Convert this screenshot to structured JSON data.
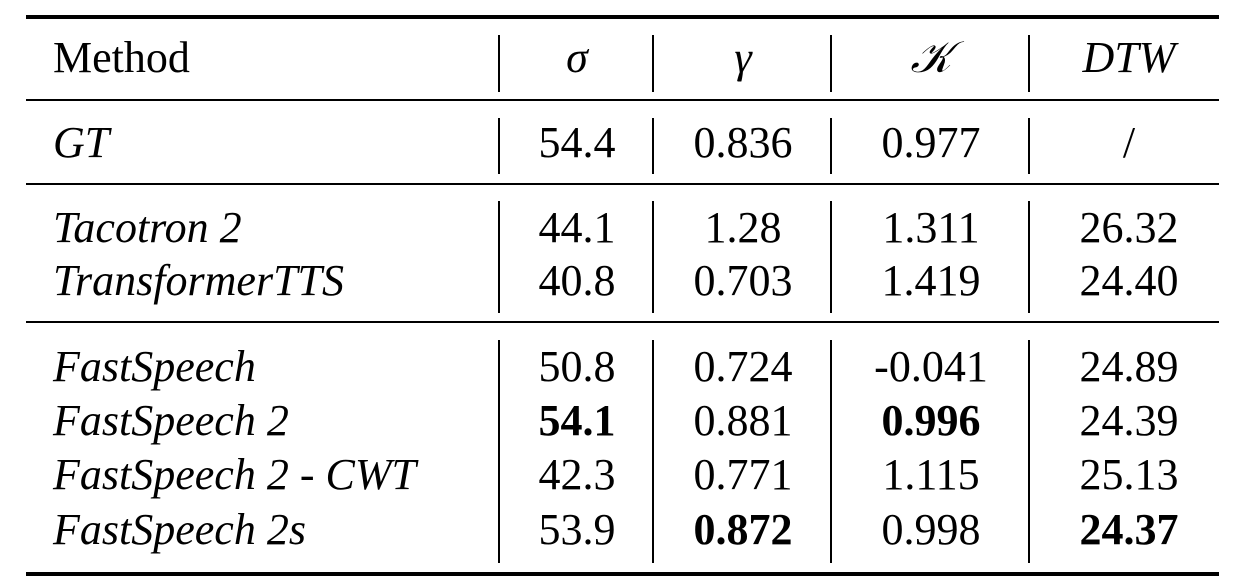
{
  "chart_data": {
    "type": "table",
    "columns": [
      "Method",
      "σ",
      "γ",
      "𝒦",
      "DTW"
    ],
    "groups": [
      {
        "rows": [
          {
            "method": "GT",
            "values": [
              "54.4",
              "0.836",
              "0.977",
              "/"
            ],
            "bold": [
              false,
              false,
              false,
              false
            ]
          }
        ]
      },
      {
        "rows": [
          {
            "method": "Tacotron 2",
            "values": [
              "44.1",
              "1.28",
              "1.311",
              "26.32"
            ],
            "bold": [
              false,
              false,
              false,
              false
            ]
          },
          {
            "method": "TransformerTTS",
            "values": [
              "40.8",
              "0.703",
              "1.419",
              "24.40"
            ],
            "bold": [
              false,
              false,
              false,
              false
            ]
          }
        ]
      },
      {
        "rows": [
          {
            "method": "FastSpeech",
            "values": [
              "50.8",
              "0.724",
              "-0.041",
              "24.89"
            ],
            "bold": [
              false,
              false,
              false,
              false
            ]
          },
          {
            "method": "FastSpeech 2",
            "values": [
              "54.1",
              "0.881",
              "0.996",
              "24.39"
            ],
            "bold": [
              true,
              false,
              true,
              false
            ]
          },
          {
            "method": "FastSpeech 2 - CWT",
            "values": [
              "42.3",
              "0.771",
              "1.115",
              "25.13"
            ],
            "bold": [
              false,
              false,
              false,
              false
            ]
          },
          {
            "method": "FastSpeech 2s",
            "values": [
              "53.9",
              "0.872",
              "0.998",
              "24.37"
            ],
            "bold": [
              false,
              true,
              false,
              true
            ]
          }
        ]
      }
    ]
  }
}
